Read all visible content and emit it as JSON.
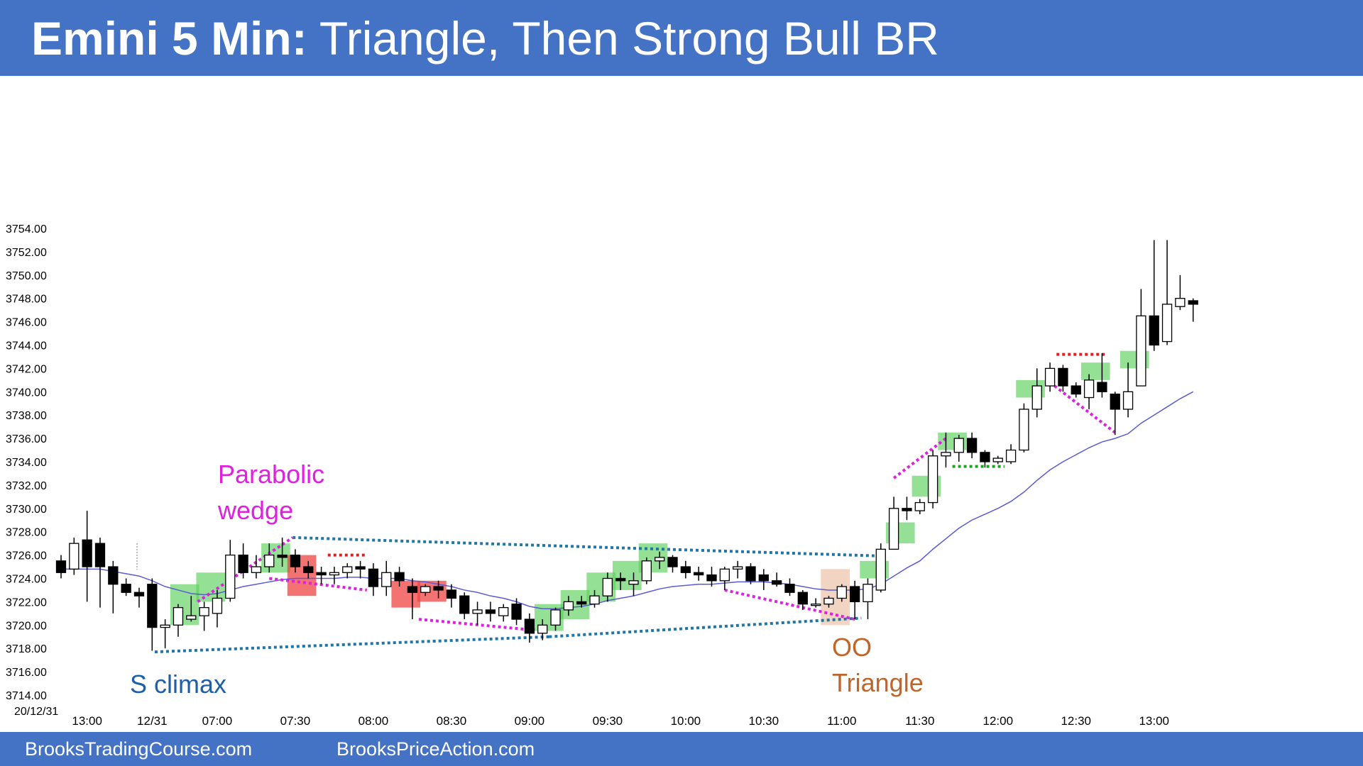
{
  "header": {
    "title_bold": "Emini 5 Min:",
    "title_rest": "Triangle, Then Strong Bull BR",
    "bg_color": "#4472c4"
  },
  "footer": {
    "left_text": "BrooksTradingCourse.com",
    "right_text": "BrooksPriceAction.com"
  },
  "chart_data": {
    "type": "candlestick",
    "date_label": "20/12/31",
    "ylim": [
      3714,
      3754
    ],
    "y_ticks": [
      "3754.00",
      "3752.00",
      "3750.00",
      "3748.00",
      "3746.00",
      "3744.00",
      "3742.00",
      "3740.00",
      "3738.00",
      "3736.00",
      "3734.00",
      "3732.00",
      "3730.00",
      "3728.00",
      "3726.00",
      "3724.00",
      "3722.00",
      "3720.00",
      "3718.00",
      "3716.00",
      "3714.00"
    ],
    "x_ticks": [
      {
        "label": "13:00",
        "bar": 2
      },
      {
        "label": "12/31",
        "bar": 7
      },
      {
        "label": "07:00",
        "bar": 12
      },
      {
        "label": "07:30",
        "bar": 18
      },
      {
        "label": "08:00",
        "bar": 24
      },
      {
        "label": "08:30",
        "bar": 30
      },
      {
        "label": "09:00",
        "bar": 36
      },
      {
        "label": "09:30",
        "bar": 42
      },
      {
        "label": "10:00",
        "bar": 48
      },
      {
        "label": "10:30",
        "bar": 54
      },
      {
        "label": "11:00",
        "bar": 60
      },
      {
        "label": "11:30",
        "bar": 66
      },
      {
        "label": "12:00",
        "bar": 72
      },
      {
        "label": "12:30",
        "bar": 78
      },
      {
        "label": "13:00",
        "bar": 84
      }
    ],
    "bull_color": "#ffffff",
    "bear_color": "#000000",
    "ema_color": "#5b5bd6",
    "candles": [
      {
        "o": 3725.5,
        "h": 3726.0,
        "l": 3724.0,
        "c": 3724.5
      },
      {
        "o": 3724.8,
        "h": 3727.5,
        "l": 3724.3,
        "c": 3727.0
      },
      {
        "o": 3727.3,
        "h": 3729.8,
        "l": 3722.0,
        "c": 3725.0
      },
      {
        "o": 3727.0,
        "h": 3727.5,
        "l": 3721.5,
        "c": 3725.0
      },
      {
        "o": 3725.0,
        "h": 3725.5,
        "l": 3721.0,
        "c": 3723.5
      },
      {
        "o": 3723.5,
        "h": 3724.0,
        "l": 3722.5,
        "c": 3722.8
      },
      {
        "o": 3722.8,
        "h": 3723.2,
        "l": 3721.5,
        "c": 3722.5
      },
      {
        "o": 3723.5,
        "h": 3724.0,
        "l": 3717.8,
        "c": 3719.8
      },
      {
        "o": 3719.8,
        "h": 3720.5,
        "l": 3718.0,
        "c": 3720.0
      },
      {
        "o": 3720.0,
        "h": 3721.8,
        "l": 3719.0,
        "c": 3721.5
      },
      {
        "o": 3720.5,
        "h": 3722.5,
        "l": 3720.3,
        "c": 3720.8
      },
      {
        "o": 3720.8,
        "h": 3722.0,
        "l": 3719.5,
        "c": 3721.5
      },
      {
        "o": 3721.0,
        "h": 3723.0,
        "l": 3719.8,
        "c": 3722.3
      },
      {
        "o": 3722.3,
        "h": 3727.3,
        "l": 3722.0,
        "c": 3726.0
      },
      {
        "o": 3726.0,
        "h": 3727.0,
        "l": 3724.0,
        "c": 3724.5
      },
      {
        "o": 3724.5,
        "h": 3726.0,
        "l": 3724.0,
        "c": 3725.0
      },
      {
        "o": 3725.0,
        "h": 3727.0,
        "l": 3724.5,
        "c": 3726.0
      },
      {
        "o": 3726.0,
        "h": 3727.5,
        "l": 3725.0,
        "c": 3725.8
      },
      {
        "o": 3726.0,
        "h": 3726.5,
        "l": 3724.5,
        "c": 3725.0
      },
      {
        "o": 3725.0,
        "h": 3725.5,
        "l": 3724.0,
        "c": 3724.5
      },
      {
        "o": 3724.5,
        "h": 3725.0,
        "l": 3723.5,
        "c": 3724.3
      },
      {
        "o": 3724.3,
        "h": 3725.0,
        "l": 3723.5,
        "c": 3724.5
      },
      {
        "o": 3724.5,
        "h": 3725.3,
        "l": 3724.0,
        "c": 3725.0
      },
      {
        "o": 3725.0,
        "h": 3725.5,
        "l": 3724.0,
        "c": 3724.8
      },
      {
        "o": 3724.8,
        "h": 3725.3,
        "l": 3722.5,
        "c": 3723.3
      },
      {
        "o": 3723.3,
        "h": 3725.5,
        "l": 3722.5,
        "c": 3724.5
      },
      {
        "o": 3724.5,
        "h": 3725.0,
        "l": 3723.3,
        "c": 3723.8
      },
      {
        "o": 3723.3,
        "h": 3724.0,
        "l": 3720.5,
        "c": 3722.8
      },
      {
        "o": 3722.8,
        "h": 3723.5,
        "l": 3722.5,
        "c": 3723.3
      },
      {
        "o": 3723.3,
        "h": 3723.8,
        "l": 3722.3,
        "c": 3723.0
      },
      {
        "o": 3723.0,
        "h": 3723.5,
        "l": 3721.5,
        "c": 3722.3
      },
      {
        "o": 3722.5,
        "h": 3722.8,
        "l": 3720.5,
        "c": 3721.0
      },
      {
        "o": 3721.0,
        "h": 3722.0,
        "l": 3720.0,
        "c": 3721.3
      },
      {
        "o": 3721.3,
        "h": 3722.0,
        "l": 3720.3,
        "c": 3721.0
      },
      {
        "o": 3720.8,
        "h": 3721.8,
        "l": 3720.3,
        "c": 3721.5
      },
      {
        "o": 3721.8,
        "h": 3722.3,
        "l": 3720.0,
        "c": 3720.5
      },
      {
        "o": 3720.5,
        "h": 3721.0,
        "l": 3718.5,
        "c": 3719.3
      },
      {
        "o": 3719.3,
        "h": 3720.5,
        "l": 3718.7,
        "c": 3720.0
      },
      {
        "o": 3720.0,
        "h": 3721.5,
        "l": 3719.5,
        "c": 3721.3
      },
      {
        "o": 3721.3,
        "h": 3722.5,
        "l": 3720.8,
        "c": 3722.0
      },
      {
        "o": 3722.0,
        "h": 3722.5,
        "l": 3721.5,
        "c": 3721.8
      },
      {
        "o": 3721.8,
        "h": 3723.0,
        "l": 3721.5,
        "c": 3722.5
      },
      {
        "o": 3722.5,
        "h": 3724.5,
        "l": 3722.0,
        "c": 3724.0
      },
      {
        "o": 3724.0,
        "h": 3724.5,
        "l": 3723.0,
        "c": 3723.8
      },
      {
        "o": 3723.5,
        "h": 3724.5,
        "l": 3722.5,
        "c": 3723.8
      },
      {
        "o": 3723.8,
        "h": 3725.8,
        "l": 3723.5,
        "c": 3725.5
      },
      {
        "o": 3725.5,
        "h": 3726.3,
        "l": 3724.8,
        "c": 3725.8
      },
      {
        "o": 3725.8,
        "h": 3726.0,
        "l": 3724.5,
        "c": 3725.0
      },
      {
        "o": 3725.0,
        "h": 3725.5,
        "l": 3724.0,
        "c": 3724.5
      },
      {
        "o": 3724.5,
        "h": 3725.0,
        "l": 3723.8,
        "c": 3724.3
      },
      {
        "o": 3724.3,
        "h": 3725.0,
        "l": 3723.3,
        "c": 3723.8
      },
      {
        "o": 3723.8,
        "h": 3725.0,
        "l": 3723.0,
        "c": 3724.8
      },
      {
        "o": 3724.8,
        "h": 3725.5,
        "l": 3724.0,
        "c": 3725.0
      },
      {
        "o": 3725.0,
        "h": 3725.3,
        "l": 3723.5,
        "c": 3723.8
      },
      {
        "o": 3724.3,
        "h": 3724.8,
        "l": 3723.0,
        "c": 3723.8
      },
      {
        "o": 3723.8,
        "h": 3724.5,
        "l": 3723.3,
        "c": 3723.5
      },
      {
        "o": 3723.5,
        "h": 3724.0,
        "l": 3722.5,
        "c": 3722.8
      },
      {
        "o": 3722.8,
        "h": 3723.0,
        "l": 3721.3,
        "c": 3721.8
      },
      {
        "o": 3721.8,
        "h": 3722.3,
        "l": 3721.5,
        "c": 3721.8
      },
      {
        "o": 3721.8,
        "h": 3722.5,
        "l": 3721.5,
        "c": 3722.3
      },
      {
        "o": 3722.3,
        "h": 3723.5,
        "l": 3722.0,
        "c": 3723.3
      },
      {
        "o": 3723.3,
        "h": 3723.8,
        "l": 3720.5,
        "c": 3722.0
      },
      {
        "o": 3722.0,
        "h": 3724.0,
        "l": 3720.5,
        "c": 3723.5
      },
      {
        "o": 3723.0,
        "h": 3727.0,
        "l": 3722.8,
        "c": 3726.5
      },
      {
        "o": 3726.5,
        "h": 3731.0,
        "l": 3726.5,
        "c": 3730.0
      },
      {
        "o": 3730.0,
        "h": 3731.0,
        "l": 3729.0,
        "c": 3729.8
      },
      {
        "o": 3729.8,
        "h": 3730.8,
        "l": 3729.5,
        "c": 3730.5
      },
      {
        "o": 3730.5,
        "h": 3735.0,
        "l": 3730.0,
        "c": 3734.5
      },
      {
        "o": 3734.5,
        "h": 3736.5,
        "l": 3733.5,
        "c": 3734.8
      },
      {
        "o": 3734.8,
        "h": 3736.3,
        "l": 3734.0,
        "c": 3736.0
      },
      {
        "o": 3736.0,
        "h": 3736.5,
        "l": 3734.3,
        "c": 3734.8
      },
      {
        "o": 3734.8,
        "h": 3735.0,
        "l": 3733.5,
        "c": 3734.0
      },
      {
        "o": 3734.0,
        "h": 3734.5,
        "l": 3733.8,
        "c": 3734.3
      },
      {
        "o": 3734.0,
        "h": 3735.5,
        "l": 3733.8,
        "c": 3735.0
      },
      {
        "o": 3735.0,
        "h": 3739.0,
        "l": 3734.8,
        "c": 3738.5
      },
      {
        "o": 3738.5,
        "h": 3742.0,
        "l": 3737.8,
        "c": 3740.5
      },
      {
        "o": 3740.5,
        "h": 3742.5,
        "l": 3740.0,
        "c": 3742.0
      },
      {
        "o": 3742.0,
        "h": 3742.3,
        "l": 3740.0,
        "c": 3740.5
      },
      {
        "o": 3740.5,
        "h": 3740.8,
        "l": 3739.5,
        "c": 3739.8
      },
      {
        "o": 3739.5,
        "h": 3741.5,
        "l": 3738.5,
        "c": 3741.0
      },
      {
        "o": 3740.8,
        "h": 3743.3,
        "l": 3739.5,
        "c": 3740.0
      },
      {
        "o": 3739.8,
        "h": 3740.0,
        "l": 3736.3,
        "c": 3738.5
      },
      {
        "o": 3738.5,
        "h": 3742.5,
        "l": 3737.8,
        "c": 3740.0
      },
      {
        "o": 3740.5,
        "h": 3748.8,
        "l": 3740.5,
        "c": 3746.5
      },
      {
        "o": 3746.5,
        "h": 3753.0,
        "l": 3743.5,
        "c": 3744.0
      },
      {
        "o": 3744.3,
        "h": 3753.0,
        "l": 3744.0,
        "c": 3747.5
      },
      {
        "o": 3747.3,
        "h": 3750.0,
        "l": 3747.0,
        "c": 3748.0
      },
      {
        "o": 3747.8,
        "h": 3748.0,
        "l": 3746.0,
        "c": 3747.5
      }
    ],
    "ema": [
      3724.8,
      3724.8,
      3724.8,
      3724.8,
      3724.6,
      3724.4,
      3724.2,
      3723.8,
      3723.3,
      3723.0,
      3722.7,
      3722.6,
      3722.7,
      3723.0,
      3723.3,
      3723.5,
      3723.7,
      3723.9,
      3724.0,
      3724.0,
      3724.0,
      3724.0,
      3724.1,
      3724.1,
      3724.0,
      3724.0,
      3724.0,
      3723.8,
      3723.7,
      3723.5,
      3723.3,
      3723.0,
      3722.8,
      3722.5,
      3722.3,
      3722.0,
      3721.6,
      3721.4,
      3721.4,
      3721.5,
      3721.6,
      3721.8,
      3722.1,
      3722.3,
      3722.5,
      3722.8,
      3723.1,
      3723.3,
      3723.4,
      3723.5,
      3723.5,
      3723.6,
      3723.7,
      3723.7,
      3723.7,
      3723.6,
      3723.5,
      3723.3,
      3723.1,
      3723.0,
      3723.0,
      3723.0,
      3723.1,
      3723.5,
      3724.2,
      3724.9,
      3725.5,
      3726.5,
      3727.4,
      3728.3,
      3729.0,
      3729.5,
      3730.0,
      3730.6,
      3731.4,
      3732.4,
      3733.3,
      3734.0,
      3734.6,
      3735.2,
      3735.7,
      3736.0,
      3736.4,
      3737.3,
      3738.0,
      3738.7,
      3739.4,
      3740.0
    ]
  },
  "annotations": {
    "parabolic": "Parabolic",
    "wedge": "wedge",
    "s_climax": "S climax",
    "oo": "OO",
    "triangle": "Triangle",
    "colors": {
      "magenta": "#e020e0",
      "blue": "#1f5fa8",
      "orange": "#c0642a",
      "teal": "#1f77a8",
      "red": "#e02020",
      "green": "#20a020"
    }
  },
  "zones": [
    {
      "color": "green",
      "bars": [
        9,
        10
      ],
      "lo": 3720.0,
      "hi": 3723.5
    },
    {
      "color": "green",
      "bars": [
        11,
        12
      ],
      "lo": 3722.0,
      "hi": 3724.5
    },
    {
      "color": "green",
      "bars": [
        16,
        17
      ],
      "lo": 3724.5,
      "hi": 3727.0
    },
    {
      "color": "red",
      "bars": [
        18,
        19
      ],
      "lo": 3722.5,
      "hi": 3726.0
    },
    {
      "color": "red",
      "bars": [
        26,
        27
      ],
      "lo": 3721.5,
      "hi": 3723.8
    },
    {
      "color": "red",
      "bars": [
        28,
        29
      ],
      "lo": 3722.0,
      "hi": 3723.8
    },
    {
      "color": "green",
      "bars": [
        37,
        38
      ],
      "lo": 3719.5,
      "hi": 3721.8
    },
    {
      "color": "green",
      "bars": [
        39,
        40
      ],
      "lo": 3720.5,
      "hi": 3723.0
    },
    {
      "color": "green",
      "bars": [
        41,
        42
      ],
      "lo": 3722.0,
      "hi": 3724.5
    },
    {
      "color": "green",
      "bars": [
        43,
        44
      ],
      "lo": 3723.0,
      "hi": 3725.5
    },
    {
      "color": "green",
      "bars": [
        45,
        46
      ],
      "lo": 3724.5,
      "hi": 3727.0
    },
    {
      "color": "orange",
      "bars": [
        59,
        60
      ],
      "lo": 3720.0,
      "hi": 3724.8
    },
    {
      "color": "green",
      "bars": [
        62,
        63
      ],
      "lo": 3724.0,
      "hi": 3725.5
    },
    {
      "color": "green",
      "bars": [
        64,
        65
      ],
      "lo": 3727.0,
      "hi": 3728.8
    },
    {
      "color": "green",
      "bars": [
        66,
        67
      ],
      "lo": 3731.0,
      "hi": 3732.8
    },
    {
      "color": "green",
      "bars": [
        68,
        69
      ],
      "lo": 3735.0,
      "hi": 3736.5
    },
    {
      "color": "green",
      "bars": [
        74,
        75
      ],
      "lo": 3739.5,
      "hi": 3741.0
    },
    {
      "color": "green",
      "bars": [
        79,
        80
      ],
      "lo": 3741.0,
      "hi": 3742.5
    },
    {
      "color": "green",
      "bars": [
        82,
        83
      ],
      "lo": 3742.0,
      "hi": 3743.5
    }
  ],
  "lines": [
    {
      "color": "teal",
      "a": [
        7.2,
        3717.7
      ],
      "b": [
        37.5,
        3719.0
      ]
    },
    {
      "color": "teal",
      "a": [
        37.5,
        3719.0
      ],
      "b": [
        61.5,
        3720.6
      ]
    },
    {
      "color": "teal",
      "a": [
        17.8,
        3727.5
      ],
      "b": [
        63.5,
        3725.9
      ]
    },
    {
      "color": "magenta",
      "a": [
        10.5,
        3722.0
      ],
      "b": [
        17.8,
        3727.5
      ]
    },
    {
      "color": "magenta",
      "a": [
        16,
        3724.0
      ],
      "b": [
        23.5,
        3723.0
      ]
    },
    {
      "color": "magenta",
      "a": [
        27.5,
        3720.5
      ],
      "b": [
        37,
        3719.5
      ]
    },
    {
      "color": "magenta",
      "a": [
        51,
        3723.0
      ],
      "b": [
        61,
        3720.5
      ]
    },
    {
      "color": "magenta",
      "a": [
        64,
        3732.6
      ],
      "b": [
        68,
        3736.0
      ]
    },
    {
      "color": "magenta",
      "a": [
        76,
        3740.8
      ],
      "b": [
        81,
        3736.5
      ]
    },
    {
      "color": "red",
      "a": [
        20.5,
        3726.0
      ],
      "b": [
        23.5,
        3726.0
      ]
    },
    {
      "color": "red",
      "a": [
        76.5,
        3743.2
      ],
      "b": [
        80.3,
        3743.2
      ]
    },
    {
      "color": "green",
      "a": [
        68.5,
        3733.6
      ],
      "b": [
        72.5,
        3733.6
      ]
    }
  ]
}
